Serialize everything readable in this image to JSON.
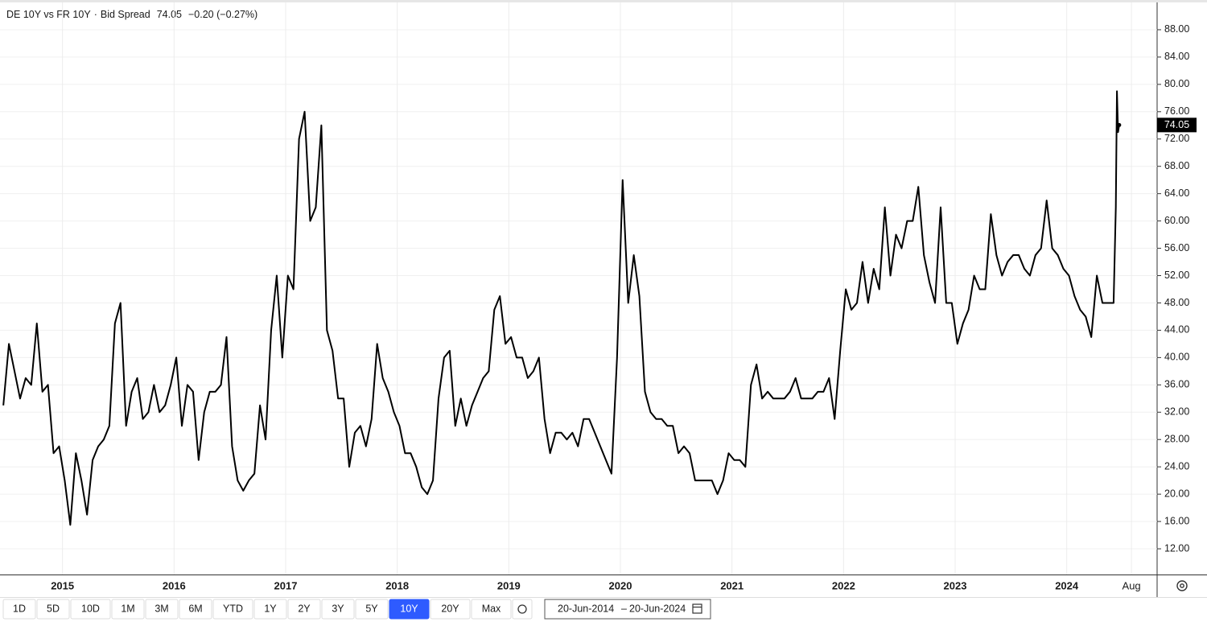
{
  "chart_data": {
    "type": "line",
    "title": "DE 10Y vs FR 10Y",
    "subtitle": "Bid Spread",
    "change": "−0.20 (−0.27%)",
    "color": "#000000",
    "grid": true,
    "x": [
      2014.47,
      2014.52,
      2014.57,
      2014.62,
      2014.67,
      2014.72,
      2014.77,
      2014.82,
      2014.87,
      2014.92,
      2014.97,
      2015.02,
      2015.07,
      2015.12,
      2015.17,
      2015.22,
      2015.27,
      2015.32,
      2015.37,
      2015.42,
      2015.47,
      2015.52,
      2015.57,
      2015.62,
      2015.67,
      2015.72,
      2015.77,
      2015.82,
      2015.87,
      2015.92,
      2015.97,
      2016.02,
      2016.07,
      2016.12,
      2016.17,
      2016.22,
      2016.27,
      2016.32,
      2016.37,
      2016.42,
      2016.47,
      2016.52,
      2016.57,
      2016.62,
      2016.67,
      2016.72,
      2016.77,
      2016.82,
      2016.87,
      2016.92,
      2016.97,
      2017.02,
      2017.07,
      2017.12,
      2017.17,
      2017.22,
      2017.27,
      2017.32,
      2017.37,
      2017.42,
      2017.47,
      2017.52,
      2017.57,
      2017.62,
      2017.67,
      2017.72,
      2017.77,
      2017.82,
      2017.87,
      2017.92,
      2017.97,
      2018.02,
      2018.07,
      2018.12,
      2018.17,
      2018.22,
      2018.27,
      2018.32,
      2018.37,
      2018.42,
      2018.47,
      2018.52,
      2018.57,
      2018.62,
      2018.67,
      2018.72,
      2018.77,
      2018.82,
      2018.87,
      2018.92,
      2018.97,
      2019.02,
      2019.07,
      2019.12,
      2019.17,
      2019.22,
      2019.27,
      2019.32,
      2019.37,
      2019.42,
      2019.47,
      2019.52,
      2019.57,
      2019.62,
      2019.67,
      2019.72,
      2019.77,
      2019.82,
      2019.87,
      2019.92,
      2019.97,
      2020.02,
      2020.07,
      2020.12,
      2020.17,
      2020.22,
      2020.27,
      2020.32,
      2020.37,
      2020.42,
      2020.47,
      2020.52,
      2020.57,
      2020.62,
      2020.67,
      2020.72,
      2020.77,
      2020.82,
      2020.87,
      2020.92,
      2020.97,
      2021.02,
      2021.07,
      2021.12,
      2021.17,
      2021.22,
      2021.27,
      2021.32,
      2021.37,
      2021.42,
      2021.47,
      2021.52,
      2021.57,
      2021.62,
      2021.67,
      2021.72,
      2021.77,
      2021.82,
      2021.87,
      2021.92,
      2021.97,
      2022.02,
      2022.07,
      2022.12,
      2022.17,
      2022.22,
      2022.27,
      2022.32,
      2022.37,
      2022.42,
      2022.47,
      2022.52,
      2022.57,
      2022.62,
      2022.67,
      2022.72,
      2022.77,
      2022.82,
      2022.87,
      2022.92,
      2022.97,
      2023.02,
      2023.07,
      2023.12,
      2023.17,
      2023.22,
      2023.27,
      2023.32,
      2023.37,
      2023.42,
      2023.47,
      2023.52,
      2023.57,
      2023.62,
      2023.67,
      2023.72,
      2023.77,
      2023.82,
      2023.87,
      2023.92,
      2023.97,
      2024.02,
      2024.07,
      2024.12,
      2024.17,
      2024.22,
      2024.27,
      2024.32,
      2024.37,
      2024.42,
      2024.44,
      2024.45,
      2024.46,
      2024.47
    ],
    "values": [
      33,
      42,
      38,
      34,
      37,
      36,
      45,
      35,
      36,
      26,
      27,
      22,
      15.5,
      26,
      22,
      17,
      25,
      27,
      28,
      30,
      45,
      48,
      30,
      35,
      37,
      31,
      32,
      36,
      32,
      33,
      36,
      40,
      30,
      36,
      35,
      25,
      32,
      35,
      35,
      36,
      43,
      27,
      22,
      20.5,
      22,
      23,
      33,
      28,
      44,
      52,
      40,
      52,
      50,
      72,
      76,
      60,
      62,
      74,
      44,
      41,
      34,
      34,
      24,
      29,
      30,
      27,
      31,
      42,
      37,
      35,
      32,
      30,
      26,
      26,
      24,
      21,
      20,
      22,
      34,
      40,
      41,
      30,
      34,
      30,
      33,
      35,
      37,
      38,
      47,
      49,
      42,
      43,
      40,
      40,
      37,
      38,
      40,
      31,
      26,
      29,
      29,
      28,
      29,
      27,
      31,
      31,
      29,
      27,
      25,
      23,
      40,
      66,
      48,
      55,
      49,
      35,
      32,
      31,
      31,
      30,
      30,
      26,
      27,
      26,
      22,
      22,
      22,
      22,
      20,
      22,
      26,
      25,
      25,
      24,
      36,
      39,
      34,
      35,
      34,
      34,
      34,
      35,
      37,
      34,
      34,
      34,
      35,
      35,
      37,
      31,
      41,
      50,
      47,
      48,
      54,
      48,
      53,
      50,
      62,
      52,
      58,
      56,
      60,
      60,
      65,
      55,
      51,
      48,
      62,
      48,
      48,
      42,
      45,
      47,
      52,
      50,
      50,
      61,
      55,
      52,
      54,
      55,
      55,
      53,
      52,
      55,
      56,
      63,
      56,
      55,
      53,
      52,
      49,
      47,
      46,
      43,
      52,
      48,
      48,
      48,
      62,
      79,
      73,
      74.05
    ],
    "xlim": [
      2014.44,
      2024.81
    ],
    "xticks": [
      2015,
      2016,
      2017,
      2018,
      2019,
      2020,
      2021,
      2022,
      2023,
      2024,
      {
        "value": 2024.58,
        "label": "Aug"
      }
    ],
    "ylim": [
      8,
      92
    ],
    "yticks": [
      {
        "value": 12,
        "label": "12.00"
      },
      {
        "value": 16,
        "label": "16.00"
      },
      {
        "value": 20,
        "label": "20.00"
      },
      {
        "value": 24,
        "label": "24.00"
      },
      {
        "value": 28,
        "label": "28.00"
      },
      {
        "value": 32,
        "label": "32.00"
      },
      {
        "value": 36,
        "label": "36.00"
      },
      {
        "value": 40,
        "label": "40.00"
      },
      {
        "value": 44,
        "label": "44.00"
      },
      {
        "value": 48,
        "label": "48.00"
      },
      {
        "value": 52,
        "label": "52.00"
      },
      {
        "value": 56,
        "label": "56.00"
      },
      {
        "value": 60,
        "label": "60.00"
      },
      {
        "value": 64,
        "label": "64.00"
      },
      {
        "value": 68,
        "label": "68.00"
      },
      {
        "value": 72,
        "label": "72.00"
      },
      {
        "value": 76,
        "label": "76.00"
      },
      {
        "value": 80,
        "label": "80.00"
      },
      {
        "value": 84,
        "label": "84.00"
      },
      {
        "value": 88,
        "label": "88.00"
      }
    ]
  },
  "toolbar": {
    "ranges": [
      "1D",
      "5D",
      "10D",
      "1M",
      "3M",
      "6M",
      "YTD",
      "1Y",
      "2Y",
      "3Y",
      "5Y",
      "10Y",
      "20Y",
      "Max"
    ],
    "active_range": "10Y",
    "date_from": "20-Jun-2014",
    "date_to": "20-Jun-2024"
  }
}
